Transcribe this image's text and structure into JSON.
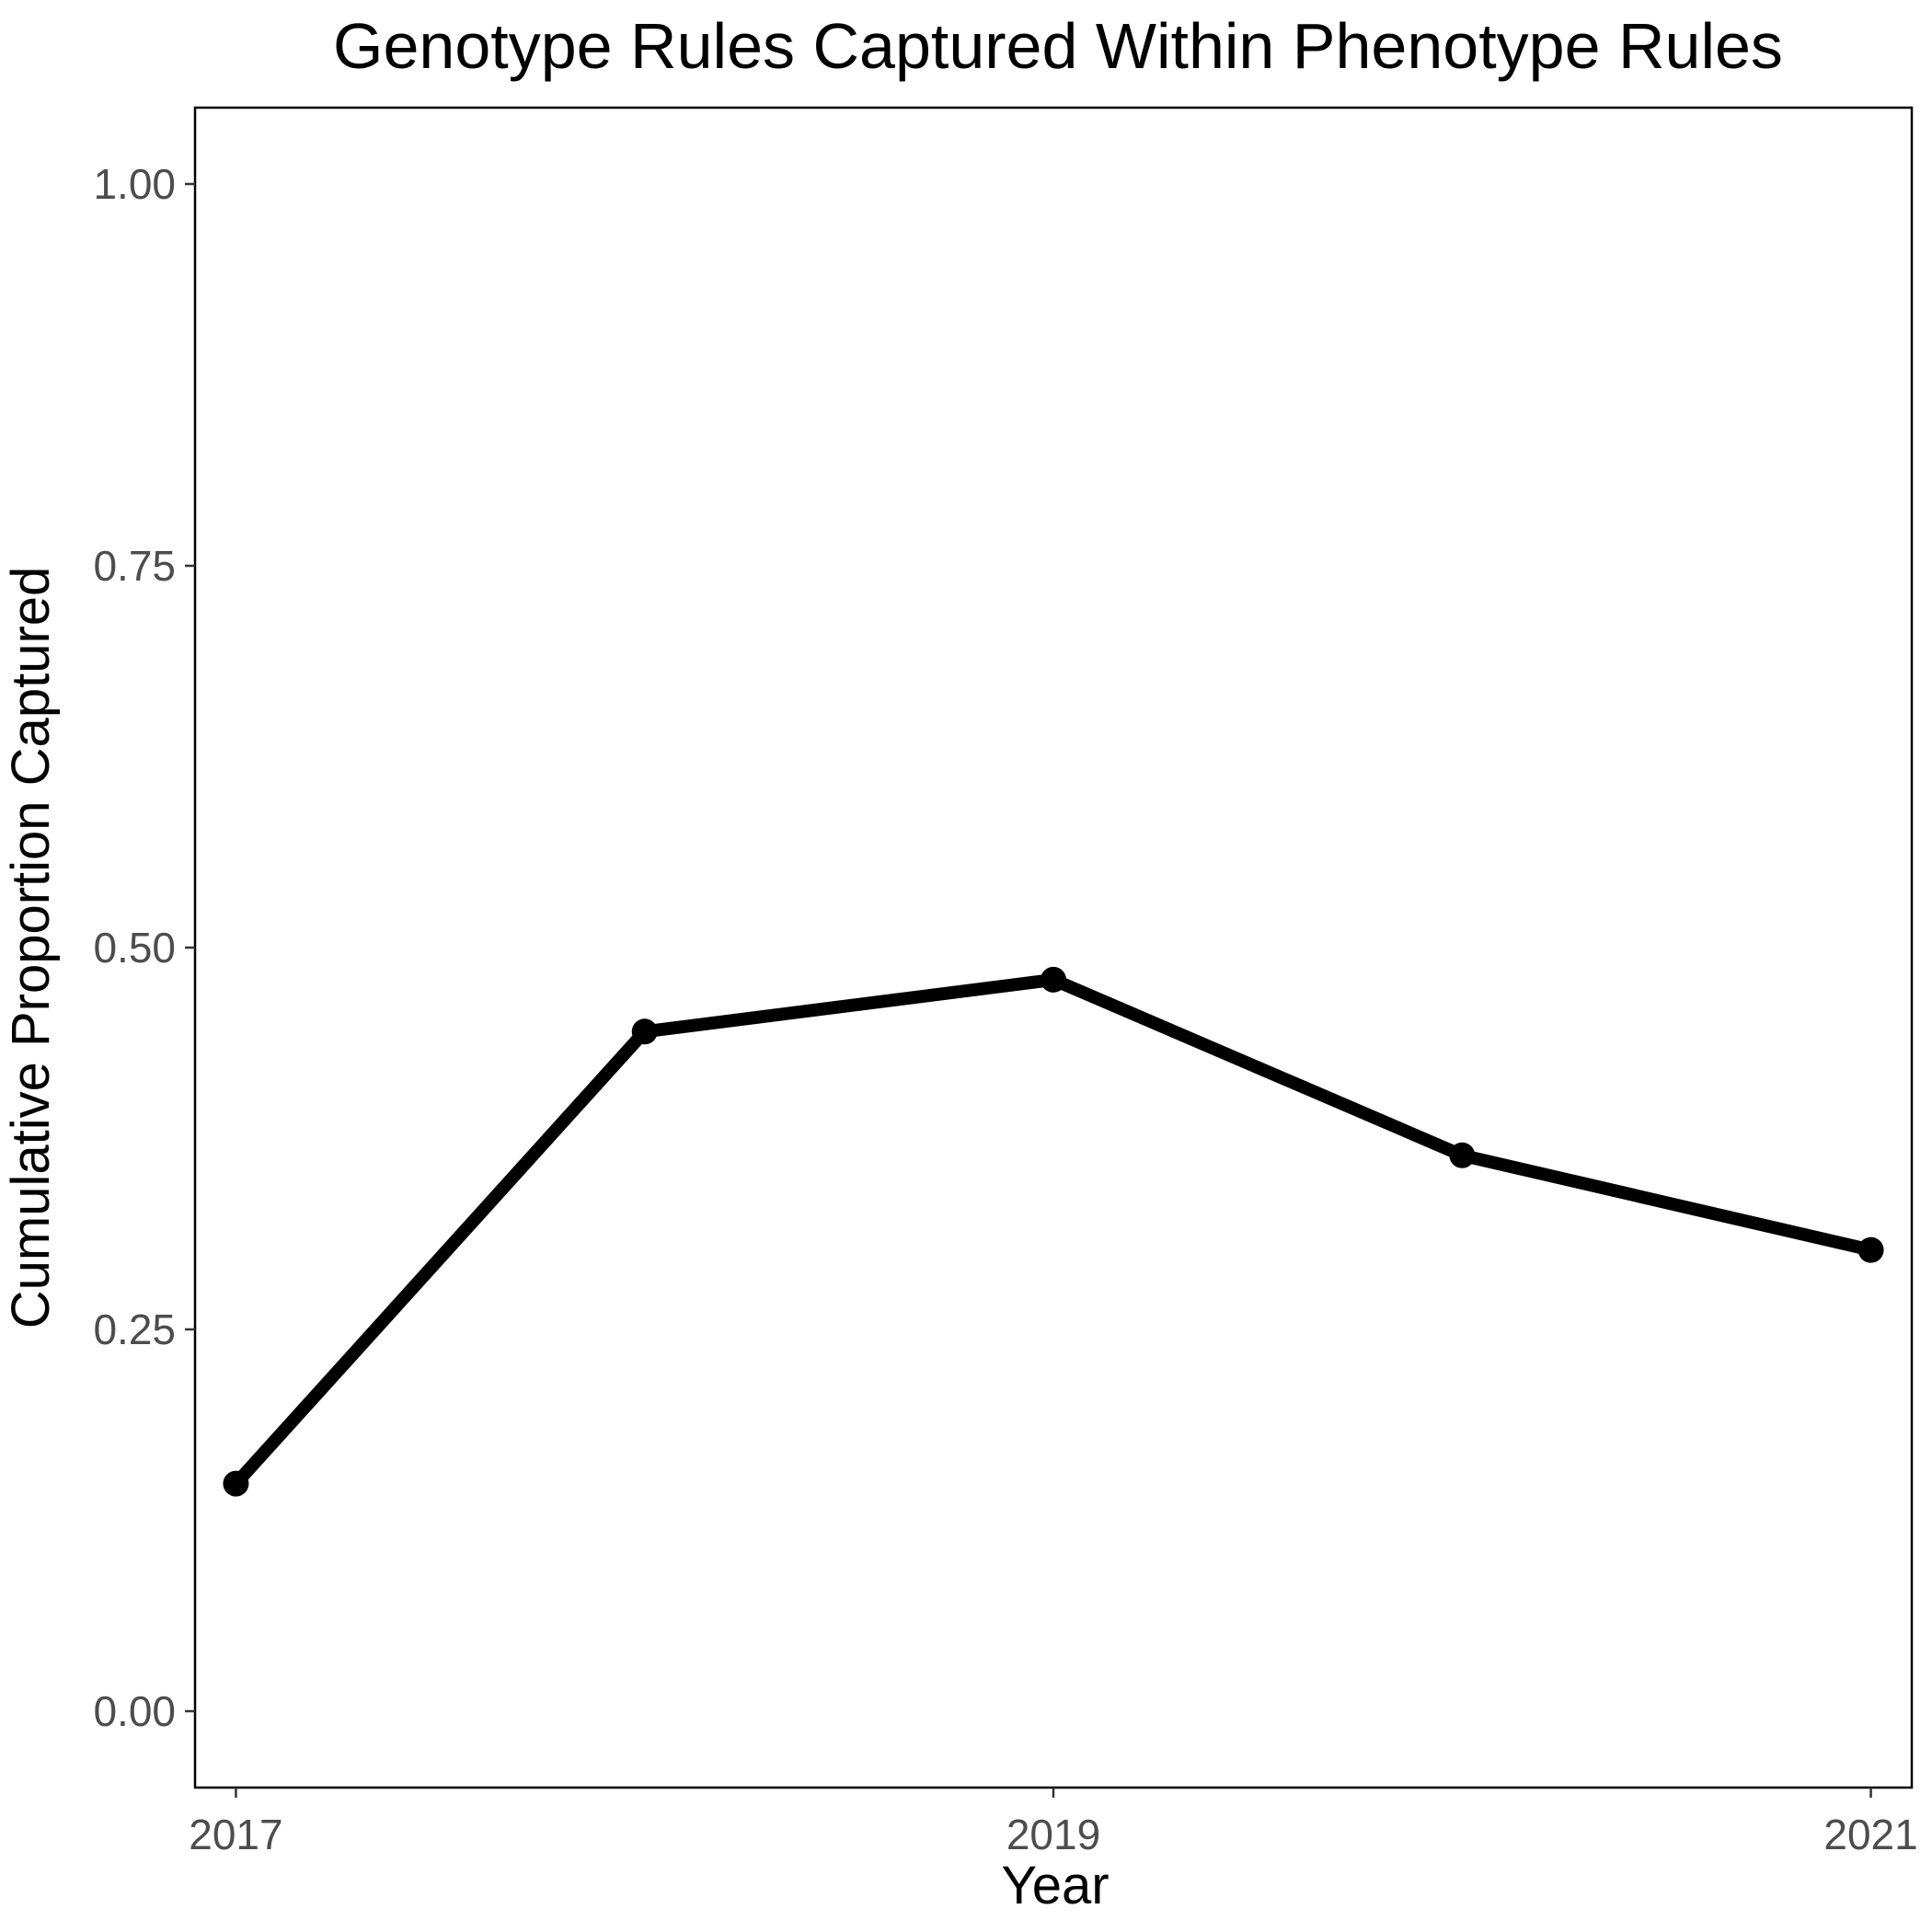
{
  "chart_data": {
    "type": "line",
    "title": "Genotype Rules Captured Within Phenotype Rules",
    "xlabel": "Year",
    "ylabel": "Cumulative Proportion Captured",
    "x": [
      2017,
      2018,
      2019,
      2020,
      2021
    ],
    "series": [
      {
        "values": [
          0.149,
          0.445,
          0.479,
          0.364,
          0.302
        ]
      }
    ],
    "x_ticks": [
      2017,
      2019,
      2021
    ],
    "x_tick_labels": [
      "2017",
      "2019",
      "2021"
    ],
    "y_ticks": [
      0,
      0.25,
      0.5,
      0.75,
      1
    ],
    "y_tick_labels": [
      "0.00",
      "0.25",
      "0.50",
      "0.75",
      "1.00"
    ],
    "xlim": [
      2016.9,
      2021.1
    ],
    "ylim": [
      -0.05,
      1.05
    ],
    "grid": false,
    "legend": "none",
    "line_color": "#000000"
  }
}
